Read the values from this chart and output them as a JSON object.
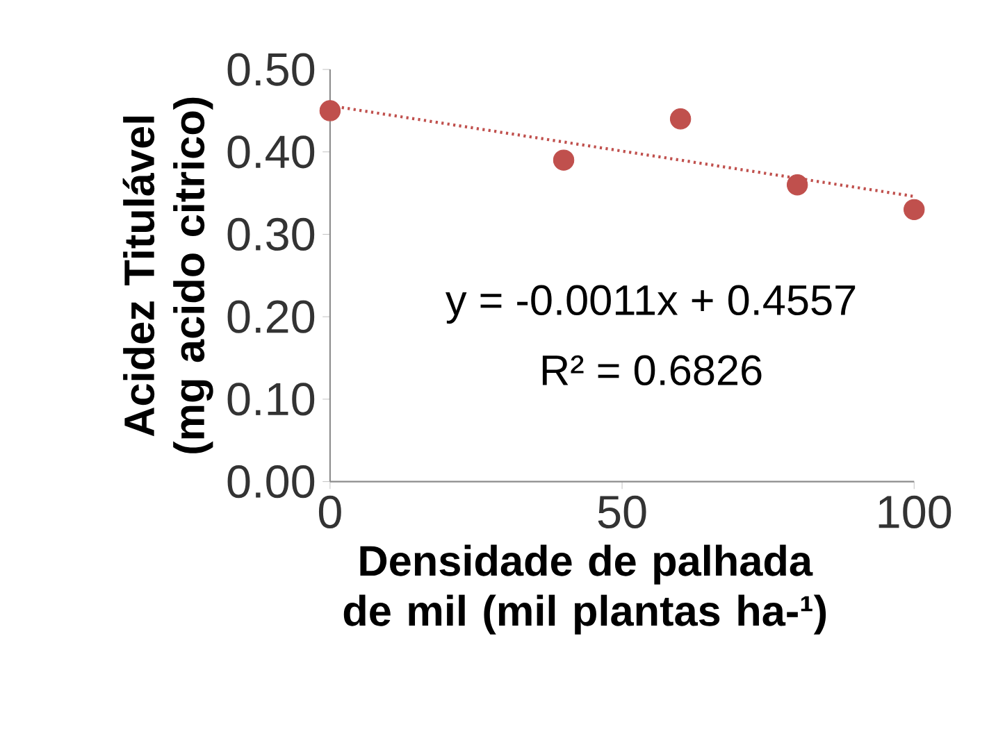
{
  "chart_data": {
    "type": "scatter",
    "xlabel": "Densidade de palhada de mil (mil plantas ha-¹)",
    "ylabel": "Acidez Titulável (mg acido citrico)",
    "x": [
      0,
      40,
      60,
      80,
      100
    ],
    "series": [
      {
        "color": "#c0504d",
        "values": [
          0.45,
          0.39,
          0.44,
          0.36,
          0.33
        ],
        "marker": "circle"
      },
      {
        "type": "line",
        "color": "#c0504d",
        "x": [
          0,
          100
        ],
        "values": [
          0.456,
          0.346
        ],
        "line_style": "dotted",
        "marker": "none"
      }
    ],
    "annotations": [
      "y = -0.0011x + 0.4557",
      "R² = 0.6826"
    ],
    "xlim": [
      0,
      100
    ],
    "xticks": [
      0,
      50,
      100
    ],
    "ylim": [
      0,
      0.5
    ],
    "yticks": [
      {
        "value": 0,
        "label": "0.00"
      },
      {
        "value": 0.1,
        "label": "0.10"
      },
      {
        "value": 0.2,
        "label": "0.20"
      },
      {
        "value": 0.3,
        "label": "0.30"
      },
      {
        "value": 0.4,
        "label": "0.40"
      },
      {
        "value": 0.5,
        "label": "0.50"
      }
    ],
    "grid": false
  }
}
